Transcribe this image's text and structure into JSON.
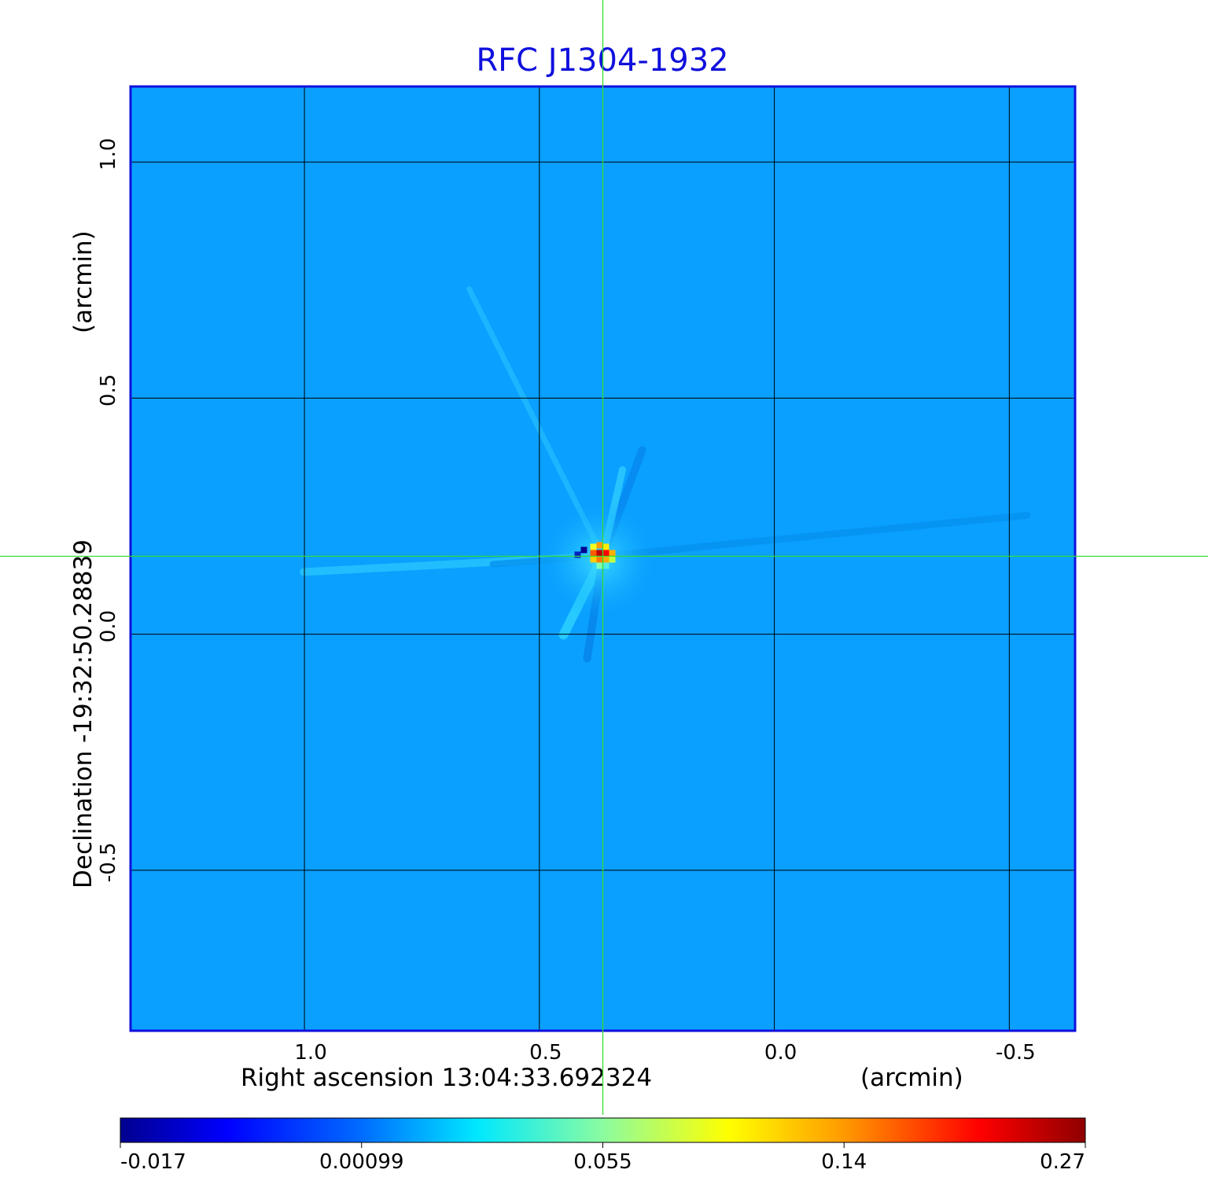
{
  "chart_data": {
    "type": "heatmap",
    "title": "RFC J1304-1932",
    "xlabel": "Right ascension  13:04:33.692324",
    "xunit": "(arcmin)",
    "ylabel": "Declination  -19:32:50.28839",
    "yunit": "(arcmin)",
    "x_ticks": [
      "1.0",
      "0.5",
      "0.0",
      "-0.5"
    ],
    "x_tick_values": [
      1.0,
      0.5,
      0.0,
      -0.5
    ],
    "y_ticks": [
      "1.0",
      "0.5",
      "0.0",
      "-0.5"
    ],
    "y_tick_values": [
      1.0,
      0.5,
      0.0,
      -0.5
    ],
    "xlim": [
      1.37,
      -0.64
    ],
    "ylim": [
      -0.84,
      1.16
    ],
    "grid": true,
    "crosshair": {
      "x": 0.365,
      "y": 0.165,
      "color": "#33dd33"
    },
    "peak": {
      "x": 0.365,
      "y": 0.165,
      "value": 0.27
    },
    "colorbar": {
      "ticks": [
        "-0.017",
        "0.00099",
        "0.055",
        "0.14",
        "0.27"
      ],
      "min": -0.017,
      "max": 0.27,
      "colormap": "jet"
    },
    "frame_color": "#1010dd",
    "background_level_color": "#0aa0ff"
  }
}
